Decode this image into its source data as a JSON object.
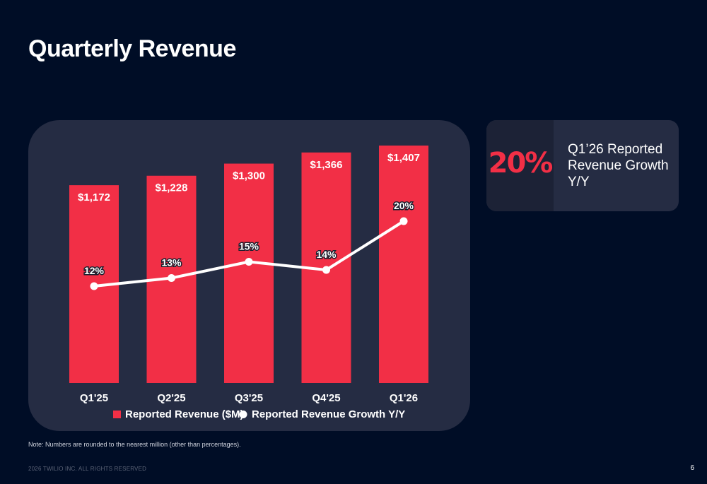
{
  "page": {
    "title": "Quarterly Revenue",
    "note": "Note: Numbers are rounded to the nearest million (other than percentages).",
    "footer": "2026 TWILIO INC. ALL RIGHTS RESERVED",
    "page_number": "6"
  },
  "kpi": {
    "value": "20%",
    "label": "Q1’26 Reported Revenue Growth Y/Y"
  },
  "colors": {
    "bar": "#f22f46",
    "line": "#ffffff",
    "panel": "#252c43",
    "background": "#000d26"
  },
  "chart_data": {
    "type": "bar",
    "categories": [
      "Q1'25",
      "Q2'25",
      "Q3'25",
      "Q4'25",
      "Q1'26"
    ],
    "series": [
      {
        "name": "Reported Revenue ($M)",
        "type": "bar",
        "values": [
          1172,
          1228,
          1300,
          1366,
          1407
        ],
        "labels": [
          "$1,172",
          "$1,228",
          "$1,300",
          "$1,366",
          "$1,407"
        ]
      },
      {
        "name": "Reported Revenue Growth Y/Y",
        "type": "line",
        "values": [
          12,
          13,
          15,
          14,
          20
        ],
        "labels": [
          "12%",
          "13%",
          "15%",
          "14%",
          "20%"
        ]
      }
    ],
    "legend": "bottom",
    "grid": false
  }
}
